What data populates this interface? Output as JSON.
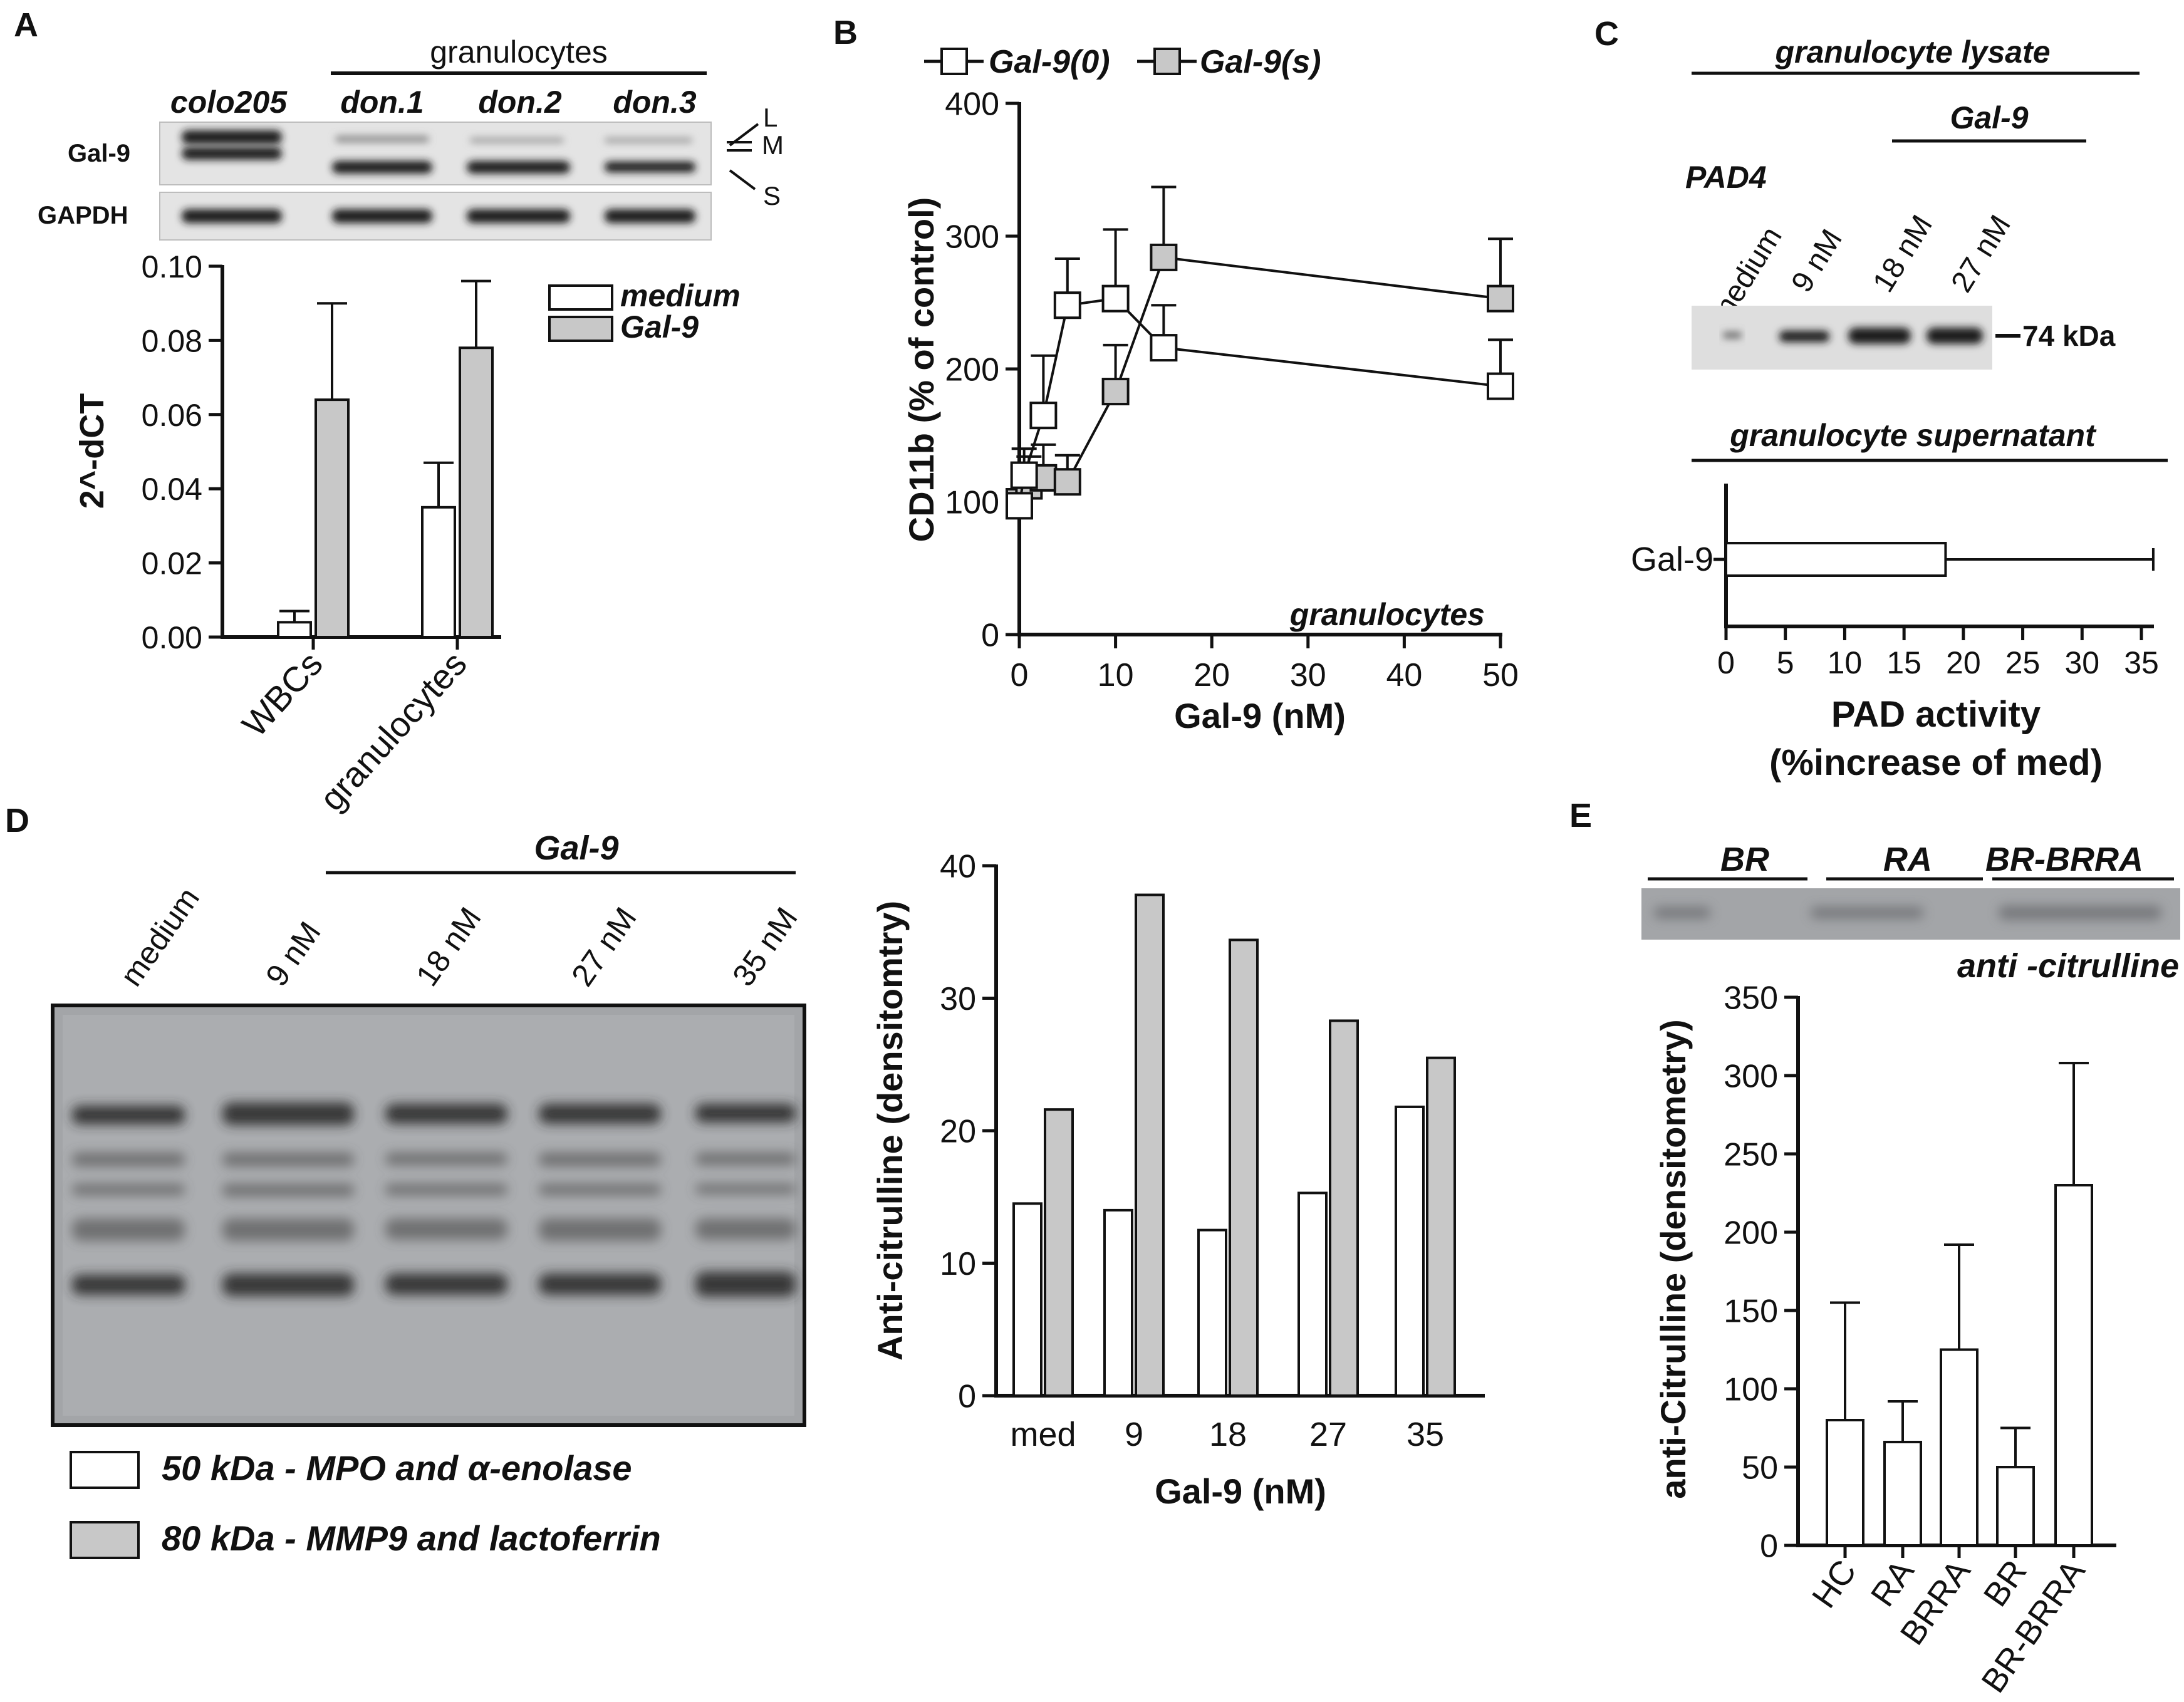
{
  "colors": {
    "open_fill": "#ffffff",
    "grey_fill": "#c8c8c8",
    "blot_bg_light": "#e2e2e2",
    "blot_bg_dark": "#9a9c9f",
    "band": "#1e1e1e",
    "axis": "#111111"
  },
  "panelA": {
    "letter": "A",
    "blot": {
      "group_label": "granulocytes",
      "lanes": [
        "colo205",
        "don.1",
        "don.2",
        "don.3"
      ],
      "rows": [
        "Gal-9",
        "GAPDH"
      ],
      "isoforms": [
        "L",
        "M",
        "S"
      ]
    }
  },
  "panelB": {
    "letter": "B"
  },
  "panelC": {
    "letter": "C",
    "lysate_title": "granulocyte lysate",
    "pad4": "PAD4",
    "gal9_group": "Gal-9",
    "lanes": [
      "medium",
      "9 nM",
      "18 nM",
      "27 nM"
    ],
    "marker": "74 kDa",
    "supernatant_title": "granulocyte supernatant"
  },
  "panelD": {
    "letter": "D",
    "gal9_group": "Gal-9",
    "lanes": [
      "medium",
      "9 nM",
      "18 nM",
      "27 nM",
      "35 nM"
    ],
    "legend": [
      "50 kDa - MPO and  α-enolase",
      "80 kDa - MMP9 and lactoferrin"
    ]
  },
  "panelE": {
    "letter": "E",
    "blot_groups": [
      "BR",
      "RA",
      "BR-BRRA"
    ],
    "blot_label": "anti -citrulline"
  },
  "chart_data": [
    {
      "id": "A",
      "type": "bar",
      "categories": [
        "WBCs",
        "granulocytes"
      ],
      "series": [
        {
          "name": "medium",
          "values": [
            0.004,
            0.035
          ],
          "errors": [
            0.003,
            0.012
          ]
        },
        {
          "name": "Gal-9",
          "values": [
            0.064,
            0.078
          ],
          "errors": [
            0.026,
            0.018
          ]
        }
      ],
      "ylabel": "2^-dCT",
      "ylim": [
        0,
        0.1
      ],
      "yticks": [
        "0.00",
        "0.02",
        "0.04",
        "0.06",
        "0.08",
        "0.10"
      ],
      "legend": "top-right",
      "grid": false
    },
    {
      "id": "B",
      "type": "line",
      "series": [
        {
          "name": "Gal-9(0)",
          "x": [
            0,
            0.5,
            2.5,
            5,
            10,
            15,
            50
          ],
          "y": [
            97,
            120,
            165,
            248,
            253,
            216,
            187
          ],
          "errors": [
            0,
            20,
            45,
            35,
            52,
            32,
            35
          ]
        },
        {
          "name": "Gal-9(s)",
          "x": [
            0,
            1,
            2.5,
            5,
            10,
            15,
            50
          ],
          "y": [
            100,
            112,
            118,
            115,
            183,
            284,
            253
          ],
          "errors": [
            0,
            22,
            25,
            20,
            35,
            53,
            45
          ]
        }
      ],
      "xlabel": "Gal-9 (nM)",
      "ylabel": "CD11b (% of control)",
      "xlim": [
        0,
        50
      ],
      "ylim": [
        0,
        400
      ],
      "xticks": [
        "0",
        "10",
        "20",
        "30",
        "40",
        "50"
      ],
      "yticks": [
        "0",
        "100",
        "200",
        "300",
        "400"
      ],
      "annotation": "granulocytes",
      "legend": "top",
      "grid": false
    },
    {
      "id": "C",
      "type": "bar",
      "orientation": "horizontal",
      "categories": [
        "Gal-9"
      ],
      "values": [
        18.5
      ],
      "errors": [
        17.5
      ],
      "xlabel": "PAD activity",
      "xlabel2": "(%increase of med)",
      "xlim": [
        0,
        36
      ],
      "xticks": [
        "0",
        "5",
        "10",
        "15",
        "20",
        "25",
        "30",
        "35"
      ],
      "grid": false
    },
    {
      "id": "D",
      "type": "bar",
      "categories": [
        "med",
        "9",
        "18",
        "27",
        "35"
      ],
      "series": [
        {
          "name": "50 kDa - MPO and  α-enolase",
          "values": [
            14.5,
            14,
            12.5,
            15.3,
            21.8
          ]
        },
        {
          "name": "80 kDa - MMP9 and lactoferrin",
          "values": [
            21.6,
            37.8,
            34.4,
            28.3,
            25.5
          ]
        }
      ],
      "xlabel": "Gal-9 (nM)",
      "ylabel": "Anti-citrulline (densitomtry)",
      "ylim": [
        0,
        40
      ],
      "yticks": [
        "0",
        "10",
        "20",
        "30",
        "40"
      ],
      "legend": "bottom-left",
      "grid": false
    },
    {
      "id": "E",
      "type": "bar",
      "categories": [
        "HC",
        "RA",
        "BRRA",
        "BR",
        "BR-BRRA"
      ],
      "values": [
        80,
        66,
        125,
        50,
        230
      ],
      "errors": [
        75,
        26,
        67,
        25,
        78
      ],
      "ylabel": "anti-Citrulline (densitometry)",
      "ylim": [
        0,
        350
      ],
      "yticks": [
        "0",
        "50",
        "100",
        "150",
        "200",
        "250",
        "300",
        "350"
      ],
      "grid": false
    }
  ]
}
